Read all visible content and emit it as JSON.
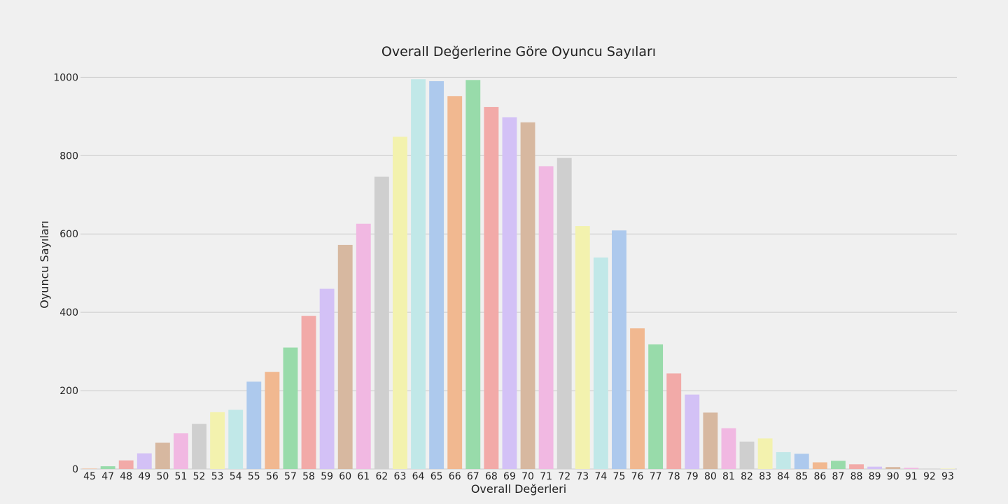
{
  "chart_data": {
    "type": "bar",
    "title": "Overall Değerlerine Göre Oyuncu Sayıları",
    "xlabel": "Overall Değerleri",
    "ylabel": "Oyuncu Sayıları",
    "ylim": [
      0,
      1040
    ],
    "yticks": [
      0,
      200,
      400,
      600,
      800,
      1000
    ],
    "grid": "horizontal",
    "categories": [
      "45",
      "47",
      "48",
      "49",
      "50",
      "51",
      "52",
      "53",
      "54",
      "55",
      "56",
      "57",
      "58",
      "59",
      "60",
      "61",
      "62",
      "63",
      "64",
      "65",
      "66",
      "67",
      "68",
      "69",
      "70",
      "71",
      "72",
      "73",
      "74",
      "75",
      "76",
      "77",
      "78",
      "79",
      "80",
      "81",
      "82",
      "83",
      "84",
      "85",
      "86",
      "87",
      "88",
      "89",
      "90",
      "91",
      "92",
      "93"
    ],
    "values": [
      1,
      7,
      22,
      40,
      67,
      91,
      115,
      145,
      151,
      223,
      248,
      310,
      391,
      460,
      572,
      626,
      746,
      848,
      995,
      990,
      952,
      993,
      924,
      898,
      885,
      773,
      794,
      620,
      540,
      609,
      359,
      318,
      244,
      190,
      144,
      104,
      70,
      78,
      43,
      39,
      17,
      21,
      12,
      6,
      5,
      3,
      1,
      1
    ],
    "palette": [
      "#f1b890",
      "#98dbaa",
      "#f2aaa8",
      "#d3c1f6",
      "#d7b8a0",
      "#f1b8e2",
      "#cfcfcf",
      "#f3f2ae",
      "#c1e8e8",
      "#adc9ed"
    ]
  }
}
